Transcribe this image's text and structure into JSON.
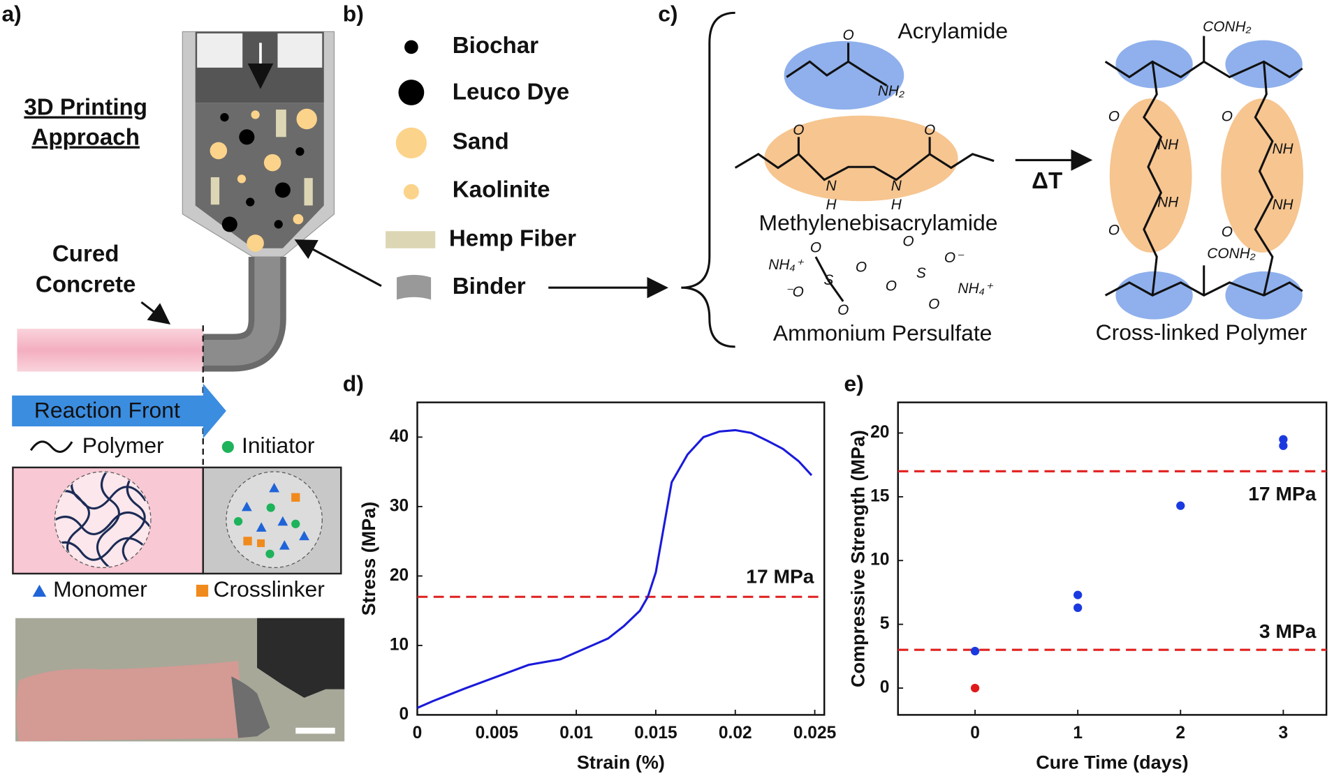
{
  "panel_labels": [
    "a)",
    "b)",
    "c)",
    "d)",
    "e)"
  ],
  "panel_a": {
    "title_lines": [
      "3D Printing",
      "Approach"
    ],
    "cured_lines": [
      "Cured",
      "Concrete"
    ],
    "reaction_front": "Reaction Front",
    "legend": [
      "Polymer",
      "Initiator",
      "Monomer",
      "Crosslinker"
    ]
  },
  "panel_b": {
    "items": [
      "Biochar",
      "Leuco Dye",
      "Sand",
      "Kaolinite",
      "Hemp Fiber",
      "Binder"
    ]
  },
  "panel_c": {
    "acrylamide": "Acrylamide",
    "crosslinker": "Methylenebisacrylamide",
    "initiator": "Ammonium Persulfate",
    "heat": "ΔT",
    "product": "Cross-linked Polymer",
    "atoms": [
      "O",
      "NH₂",
      "O",
      "O",
      "N",
      "H",
      "N",
      "H",
      "NH₄⁺",
      "O",
      "S",
      "O",
      "O",
      "S",
      "O⁻",
      "⁻O",
      "O",
      "O",
      "O",
      "NH₄⁺",
      "CONH₂",
      "O",
      "NH",
      "NH",
      "O",
      "O",
      "NH",
      "NH",
      "O",
      "CONH₂"
    ]
  },
  "chart_data": [
    {
      "type": "line",
      "xlabel": "Strain (%)",
      "ylabel": "Stress (MPa)",
      "xlim": [
        0,
        0.0256
      ],
      "ylim": [
        0,
        45
      ],
      "xticks": [
        0,
        0.005,
        0.01,
        0.015,
        0.02,
        0.025
      ],
      "yticks": [
        0,
        10,
        20,
        30,
        40
      ],
      "series": [
        {
          "color": "#1a1adb",
          "x": [
            0,
            0.001,
            0.003,
            0.005,
            0.007,
            0.009,
            0.011,
            0.012,
            0.013,
            0.014,
            0.0145,
            0.015,
            0.0155,
            0.016,
            0.017,
            0.018,
            0.019,
            0.02,
            0.021,
            0.022,
            0.023,
            0.024,
            0.0248
          ],
          "y": [
            1,
            2,
            3.8,
            5.5,
            7.2,
            8,
            10,
            11,
            12.8,
            15,
            17,
            20.5,
            27,
            33.5,
            37.5,
            40,
            40.8,
            41,
            40.6,
            39.5,
            38.3,
            36.5,
            34.5
          ]
        }
      ],
      "ref_lines": [
        {
          "value": 17,
          "label": "17 MPa",
          "color": "#e02020"
        }
      ]
    },
    {
      "type": "scatter",
      "xlabel": "Cure Time (days)",
      "ylabel": "Compressive Strength (MPa)",
      "xlim": [
        -0.75,
        3.42
      ],
      "ylim": [
        -2.1,
        22.4
      ],
      "xticks": [
        0,
        1,
        2,
        3
      ],
      "yticks": [
        0,
        5,
        10,
        15,
        20
      ],
      "series": [
        {
          "color": "#1a3ae0",
          "x": [
            0,
            1,
            1,
            2,
            3,
            3
          ],
          "y": [
            2.9,
            7.3,
            6.3,
            14.3,
            19.5,
            19
          ]
        },
        {
          "color": "#e01a1a",
          "x": [
            0
          ],
          "y": [
            0
          ]
        }
      ],
      "ref_lines": [
        {
          "value": 17,
          "label": "17 MPa",
          "color": "#e02020"
        },
        {
          "value": 3,
          "label": "3 MPa",
          "color": "#e02020"
        }
      ]
    }
  ]
}
